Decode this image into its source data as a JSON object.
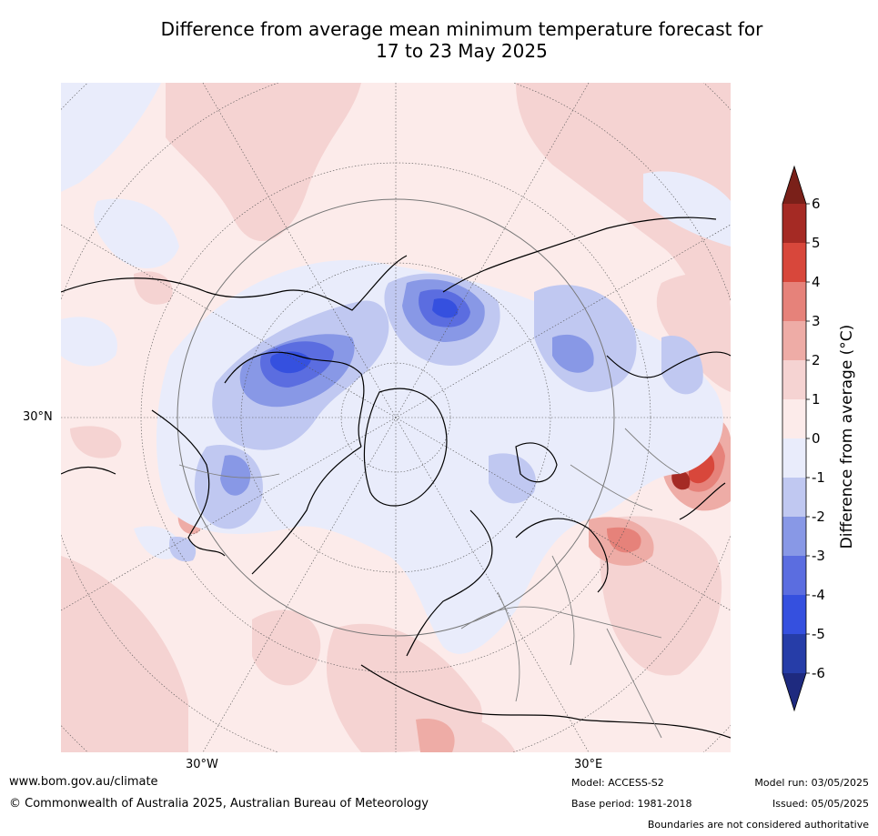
{
  "title_line1": "Difference from average mean minimum temperature forecast for",
  "title_line2": "17 to 23 May 2025",
  "map_labels": {
    "lat_30n": "30°N",
    "lon_30w": "30°W",
    "lon_30e": "30°E"
  },
  "colorbar": {
    "label": "Difference from average (°C)",
    "ticks": [
      "6",
      "5",
      "4",
      "3",
      "2",
      "1",
      "0",
      "-1",
      "-2",
      "-3",
      "-4",
      "-5",
      "-6"
    ],
    "colors": {
      "over": "#7a2019",
      "5_6": "#a52a24",
      "4_5": "#d8473b",
      "3_4": "#e6827a",
      "2_3": "#eeaca6",
      "1_2": "#f5d3d2",
      "0_1": "#fcebea",
      "m1_0": "#e9ecfb",
      "m2_m1": "#c0c8f1",
      "m3_m2": "#8898e6",
      "m4_m3": "#5b6de0",
      "m5_m4": "#3550df",
      "m6_m5": "#263da8",
      "under": "#1e2a7f"
    }
  },
  "footer": {
    "website": "www.bom.gov.au/climate",
    "copyright": "© Commonwealth of Australia 2025, Australian Bureau of Meteorology",
    "model": "Model: ACCESS-S2",
    "base_period": "Base period: 1981-2018",
    "model_run": "Model run: 03/05/2025",
    "issued": "Issued: 05/05/2025",
    "disclaimer": "Boundaries are not considered authoritative"
  }
}
